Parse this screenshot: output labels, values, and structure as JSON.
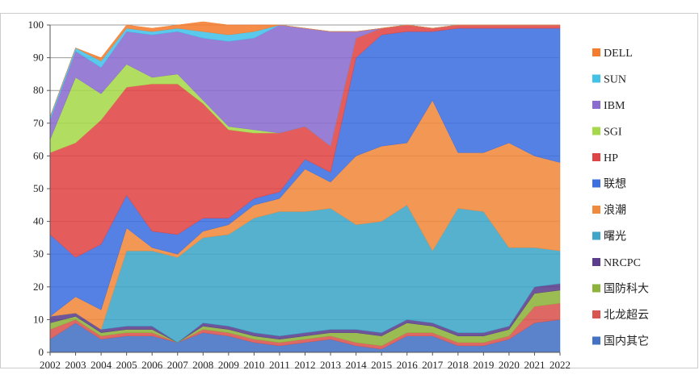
{
  "chart_data": {
    "type": "area",
    "stacked": true,
    "x": [
      "2002",
      "2003",
      "2004",
      "2005",
      "2006",
      "2007",
      "2008",
      "2009",
      "2010",
      "2011",
      "2012",
      "2013",
      "2014",
      "2015",
      "2016",
      "2017",
      "2018",
      "2019",
      "2020",
      "2021",
      "2022"
    ],
    "ylim": [
      0,
      100
    ],
    "yticks": [
      0,
      10,
      20,
      30,
      40,
      50,
      60,
      70,
      80,
      90,
      100
    ],
    "grid": true,
    "legend": "right",
    "series": [
      {
        "name": "国内其它",
        "color": "#4472C4",
        "values": [
          4,
          9,
          4,
          5,
          5,
          3,
          6,
          5,
          3,
          2,
          3,
          4,
          2,
          1,
          5,
          5,
          2,
          2,
          4,
          9,
          10
        ]
      },
      {
        "name": "北龙超云",
        "color": "#D9534F",
        "values": [
          3,
          1,
          1,
          1,
          1,
          0,
          1,
          1,
          1,
          1,
          1,
          1,
          1,
          1,
          1,
          1,
          1,
          1,
          1,
          5,
          5
        ]
      },
      {
        "name": "国防科大",
        "color": "#8DB33A",
        "values": [
          2,
          1,
          1,
          1,
          1,
          0,
          1,
          1,
          1,
          1,
          1,
          1,
          3,
          3,
          3,
          2,
          2,
          2,
          2,
          4,
          4
        ]
      },
      {
        "name": "NRCPC",
        "color": "#5B3F8C",
        "values": [
          2,
          1,
          1,
          1,
          1,
          0,
          1,
          1,
          1,
          1,
          1,
          1,
          1,
          1,
          1,
          1,
          1,
          1,
          1,
          2,
          2
        ]
      },
      {
        "name": "曙光",
        "color": "#3FA6C8",
        "values": [
          0,
          0,
          0,
          23,
          23,
          26,
          26,
          28,
          35,
          38,
          37,
          37,
          32,
          34,
          35,
          22,
          38,
          37,
          24,
          12,
          10
        ]
      },
      {
        "name": "浪潮",
        "color": "#F08A3C",
        "values": [
          0,
          5,
          6,
          7,
          1,
          1,
          2,
          3,
          4,
          4,
          13,
          8,
          21,
          23,
          19,
          46,
          17,
          18,
          32,
          28,
          27
        ]
      },
      {
        "name": "联想",
        "color": "#3D6FE0",
        "values": [
          25,
          12,
          20,
          10,
          5,
          6,
          4,
          2,
          2,
          2,
          3,
          3,
          30,
          34,
          34,
          21,
          38,
          38,
          35,
          39,
          41
        ]
      },
      {
        "name": "HP",
        "color": "#E04545",
        "values": [
          25,
          35,
          38,
          33,
          45,
          46,
          35,
          27,
          20,
          18,
          10,
          8,
          6,
          2,
          2,
          1,
          1,
          1,
          1,
          1,
          1
        ]
      },
      {
        "name": "SGI",
        "color": "#A6D94A",
        "values": [
          4,
          20,
          8,
          7,
          2,
          3,
          1,
          1,
          1,
          0,
          0,
          0,
          0,
          0,
          0,
          0,
          0,
          0,
          0,
          0,
          0
        ]
      },
      {
        "name": "IBM",
        "color": "#8A6CCF",
        "values": [
          6,
          8,
          8,
          10,
          13,
          13,
          19,
          26,
          28,
          33,
          30,
          35,
          2,
          0,
          0,
          0,
          0,
          0,
          0,
          0,
          0
        ]
      },
      {
        "name": "SUN",
        "color": "#43C2E8",
        "values": [
          1,
          1,
          2,
          1,
          1,
          1,
          2,
          2,
          2,
          0,
          0,
          0,
          0,
          0,
          0,
          0,
          0,
          0,
          0,
          0,
          0
        ]
      },
      {
        "name": "DELL",
        "color": "#F47C2E",
        "values": [
          0,
          0,
          1,
          1,
          1,
          1,
          3,
          3,
          2,
          0,
          0,
          0,
          0,
          0,
          0,
          0,
          0,
          0,
          0,
          0,
          0
        ]
      }
    ],
    "legend_order": [
      "DELL",
      "SUN",
      "IBM",
      "SGI",
      "HP",
      "联想",
      "浪潮",
      "曙光",
      "NRCPC",
      "国防科大",
      "北龙超云",
      "国内其它"
    ]
  }
}
